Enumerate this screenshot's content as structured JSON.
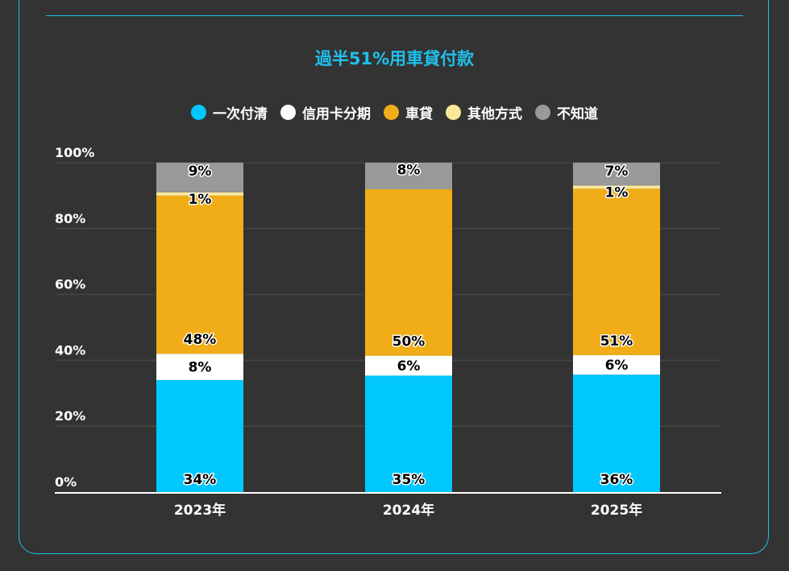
{
  "chart_data": {
    "type": "bar",
    "stacked": true,
    "title": "過半51%用車貸付款",
    "xlabel": "",
    "ylabel": "",
    "ylim": [
      0,
      100
    ],
    "yticks": [
      "0%",
      "20%",
      "40%",
      "60%",
      "80%",
      "100%"
    ],
    "ytick_values": [
      0,
      20,
      40,
      60,
      80,
      100
    ],
    "grid": true,
    "legend_position": "top-center",
    "categories": [
      "2023年",
      "2024年",
      "2025年"
    ],
    "series": [
      {
        "name": "一次付清",
        "color": "#00c8ff",
        "values": [
          34,
          35,
          36
        ],
        "labels": [
          "34%",
          "35%",
          "36%"
        ]
      },
      {
        "name": "信用卡分期",
        "color": "#ffffff",
        "values": [
          8,
          6,
          6
        ],
        "labels": [
          "8%",
          "6%",
          "6%"
        ]
      },
      {
        "name": "車貸",
        "color": "#f0ad17",
        "values": [
          48,
          50,
          51
        ],
        "labels": [
          "48%",
          "50%",
          "51%"
        ]
      },
      {
        "name": "其他方式",
        "color": "#fbe99a",
        "values": [
          1,
          0,
          1
        ],
        "labels": [
          "1%",
          "",
          "1%"
        ]
      },
      {
        "name": "不知道",
        "color": "#999999",
        "values": [
          9,
          8,
          7
        ],
        "labels": [
          "9%",
          "8%",
          "7%"
        ]
      }
    ]
  },
  "colors": {
    "background": "#333333",
    "accent": "#1ec0ec",
    "grid": "#454545",
    "axis": "#ffffff"
  }
}
